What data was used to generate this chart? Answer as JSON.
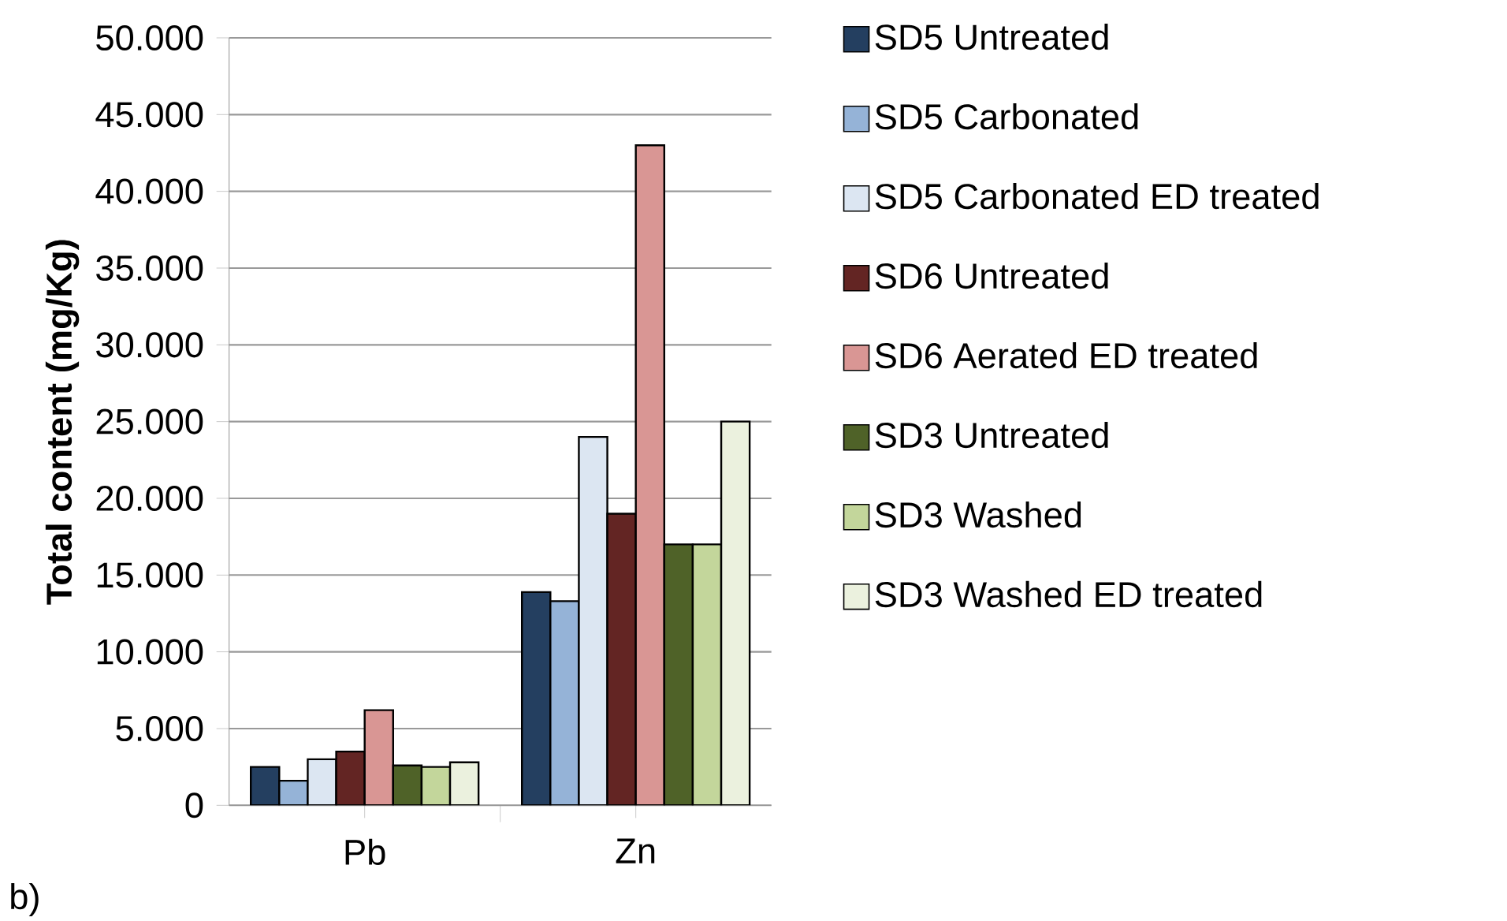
{
  "chart_data": {
    "type": "bar",
    "ylabel": "Total content (mg/Kg)",
    "annotations": [
      "b)"
    ],
    "categories": [
      "Pb",
      "Zn"
    ],
    "series": [
      {
        "name": "SD5 Untreated",
        "color": "#243f60",
        "values": [
          2500,
          13900
        ]
      },
      {
        "name": "SD5 Carbonated",
        "color": "#95b3d7",
        "values": [
          1600,
          13300
        ]
      },
      {
        "name": "SD5 Carbonated ED treated",
        "color": "#dce6f2",
        "values": [
          3000,
          24000
        ]
      },
      {
        "name": "SD6 Untreated",
        "color": "#632523",
        "values": [
          3500,
          19000
        ]
      },
      {
        "name": "SD6 Aerated ED treated",
        "color": "#d99694",
        "values": [
          6200,
          43000
        ]
      },
      {
        "name": "SD3 Untreated",
        "color": "#4f6228",
        "values": [
          2600,
          17000
        ]
      },
      {
        "name": "SD3 Washed",
        "color": "#c3d69b",
        "values": [
          2500,
          17000
        ]
      },
      {
        "name": "SD3 Washed ED treated",
        "color": "#ebf1de",
        "values": [
          2800,
          25000
        ]
      }
    ],
    "ylim": [
      0,
      50000
    ],
    "yticks": [
      0,
      {
        "value": 5000,
        "label": "5.000"
      },
      {
        "value": 10000,
        "label": "10.000"
      },
      {
        "value": 15000,
        "label": "15.000"
      },
      {
        "value": 20000,
        "label": "20.000"
      },
      {
        "value": 25000,
        "label": "25.000"
      },
      {
        "value": 30000,
        "label": "30.000"
      },
      {
        "value": 35000,
        "label": "35.000"
      },
      {
        "value": 40000,
        "label": "40.000"
      },
      {
        "value": 45000,
        "label": "45.000"
      },
      {
        "value": 50000,
        "label": "50.000"
      }
    ],
    "grid": "y",
    "legend": "right"
  }
}
